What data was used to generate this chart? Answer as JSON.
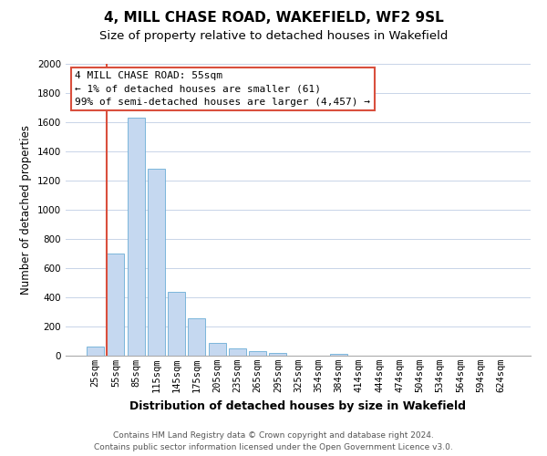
{
  "title": "4, MILL CHASE ROAD, WAKEFIELD, WF2 9SL",
  "subtitle": "Size of property relative to detached houses in Wakefield",
  "xlabel": "Distribution of detached houses by size in Wakefield",
  "ylabel": "Number of detached properties",
  "bar_labels": [
    "25sqm",
    "55sqm",
    "85sqm",
    "115sqm",
    "145sqm",
    "175sqm",
    "205sqm",
    "235sqm",
    "265sqm",
    "295sqm",
    "325sqm",
    "354sqm",
    "384sqm",
    "414sqm",
    "444sqm",
    "474sqm",
    "504sqm",
    "534sqm",
    "564sqm",
    "594sqm",
    "624sqm"
  ],
  "bar_values": [
    65,
    700,
    1630,
    1280,
    435,
    255,
    90,
    52,
    30,
    20,
    0,
    0,
    12,
    0,
    0,
    0,
    0,
    0,
    0,
    0,
    0
  ],
  "bar_color": "#c5d8f0",
  "bar_edge_color": "#6baed6",
  "highlight_bar_index": 1,
  "highlight_bar_color": "#c5d8f0",
  "highlight_bar_edge_color": "#d94f3d",
  "red_line_x": 1,
  "ylim": [
    0,
    2000
  ],
  "yticks": [
    0,
    200,
    400,
    600,
    800,
    1000,
    1200,
    1400,
    1600,
    1800,
    2000
  ],
  "annotation_title": "4 MILL CHASE ROAD: 55sqm",
  "annotation_line1": "← 1% of detached houses are smaller (61)",
  "annotation_line2": "99% of semi-detached houses are larger (4,457) →",
  "annotation_box_color": "#ffffff",
  "annotation_box_edge_color": "#d94f3d",
  "footer_line1": "Contains HM Land Registry data © Crown copyright and database right 2024.",
  "footer_line2": "Contains public sector information licensed under the Open Government Licence v3.0.",
  "background_color": "#ffffff",
  "grid_color": "#c8d4e8",
  "title_fontsize": 11,
  "subtitle_fontsize": 9.5,
  "axis_label_fontsize": 9,
  "ylabel_fontsize": 8.5,
  "tick_fontsize": 7.5,
  "footer_fontsize": 6.5,
  "annotation_fontsize": 8
}
